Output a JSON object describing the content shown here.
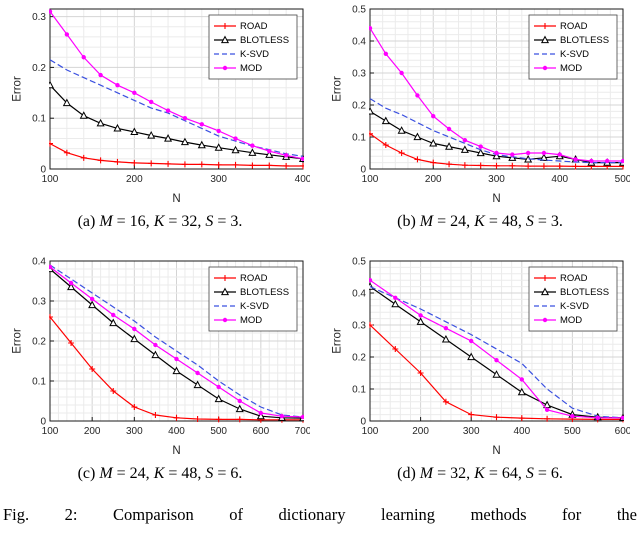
{
  "figure": {
    "caption": "Fig. 2: Comparison of dictionary learning methods for the"
  },
  "chart_data": [
    {
      "id": "a",
      "type": "line",
      "title": "",
      "caption": "(a) M = 16, K = 32, S = 3.",
      "xlabel": "N",
      "ylabel": "Error",
      "xlim": [
        100,
        400
      ],
      "ylim": [
        0,
        0.315
      ],
      "xticks": [
        100,
        200,
        300,
        400
      ],
      "yticks": [
        0,
        0.1,
        0.2,
        0.3
      ],
      "grid": true,
      "legend_position": "top-right",
      "x": [
        100,
        120,
        140,
        160,
        180,
        200,
        220,
        240,
        260,
        280,
        300,
        320,
        340,
        360,
        380,
        400
      ],
      "series": [
        {
          "name": "ROAD",
          "color": "#ff0000",
          "marker": "plus",
          "line": "solid",
          "y": [
            0.05,
            0.032,
            0.022,
            0.017,
            0.014,
            0.012,
            0.011,
            0.01,
            0.009,
            0.009,
            0.008,
            0.008,
            0.007,
            0.007,
            0.006,
            0.006
          ]
        },
        {
          "name": "BLOTLESS",
          "color": "#000000",
          "marker": "triangle-up",
          "line": "solid",
          "y": [
            0.165,
            0.13,
            0.105,
            0.09,
            0.08,
            0.073,
            0.066,
            0.06,
            0.053,
            0.047,
            0.042,
            0.037,
            0.032,
            0.028,
            0.024,
            0.02
          ]
        },
        {
          "name": "K-SVD",
          "color": "#3a50e0",
          "marker": "none",
          "line": "dashed",
          "y": [
            0.215,
            0.195,
            0.18,
            0.165,
            0.15,
            0.135,
            0.12,
            0.11,
            0.095,
            0.08,
            0.065,
            0.055,
            0.045,
            0.038,
            0.03,
            0.025
          ]
        },
        {
          "name": "MOD",
          "color": "#ff00ff",
          "marker": "dot",
          "line": "solid",
          "y": [
            0.31,
            0.265,
            0.22,
            0.185,
            0.165,
            0.15,
            0.132,
            0.115,
            0.1,
            0.088,
            0.075,
            0.06,
            0.046,
            0.035,
            0.027,
            0.02
          ]
        }
      ]
    },
    {
      "id": "b",
      "type": "line",
      "title": "",
      "caption": "(b) M = 24, K = 48, S = 3.",
      "xlabel": "N",
      "ylabel": "Error",
      "xlim": [
        100,
        500
      ],
      "ylim": [
        0,
        0.5
      ],
      "xticks": [
        100,
        200,
        300,
        400,
        500
      ],
      "yticks": [
        0,
        0.1,
        0.2,
        0.3,
        0.4,
        0.5
      ],
      "grid": true,
      "legend_position": "top-right",
      "x": [
        100,
        125,
        150,
        175,
        200,
        225,
        250,
        275,
        300,
        325,
        350,
        375,
        400,
        425,
        450,
        475,
        500
      ],
      "series": [
        {
          "name": "ROAD",
          "color": "#ff0000",
          "marker": "plus",
          "line": "solid",
          "y": [
            0.11,
            0.075,
            0.05,
            0.03,
            0.02,
            0.015,
            0.012,
            0.011,
            0.01,
            0.01,
            0.009,
            0.009,
            0.009,
            0.008,
            0.008,
            0.008,
            0.008
          ]
        },
        {
          "name": "BLOTLESS",
          "color": "#000000",
          "marker": "triangle-up",
          "line": "solid",
          "y": [
            0.18,
            0.15,
            0.12,
            0.1,
            0.08,
            0.07,
            0.06,
            0.05,
            0.04,
            0.035,
            0.03,
            0.035,
            0.04,
            0.03,
            0.02,
            0.02,
            0.02
          ]
        },
        {
          "name": "K-SVD",
          "color": "#3a50e0",
          "marker": "none",
          "line": "dashed",
          "y": [
            0.22,
            0.19,
            0.17,
            0.145,
            0.12,
            0.1,
            0.08,
            0.06,
            0.045,
            0.038,
            0.032,
            0.028,
            0.025,
            0.022,
            0.02,
            0.02,
            0.02
          ]
        },
        {
          "name": "MOD",
          "color": "#ff00ff",
          "marker": "dot",
          "line": "solid",
          "y": [
            0.44,
            0.36,
            0.3,
            0.23,
            0.165,
            0.125,
            0.09,
            0.07,
            0.05,
            0.045,
            0.05,
            0.05,
            0.045,
            0.03,
            0.025,
            0.025,
            0.025
          ]
        }
      ]
    },
    {
      "id": "c",
      "type": "line",
      "title": "",
      "caption": "(c) M = 24, K = 48, S = 6.",
      "xlabel": "N",
      "ylabel": "Error",
      "xlim": [
        100,
        700
      ],
      "ylim": [
        0,
        0.4
      ],
      "xticks": [
        100,
        200,
        300,
        400,
        500,
        600,
        700
      ],
      "yticks": [
        0,
        0.1,
        0.2,
        0.3,
        0.4
      ],
      "grid": true,
      "legend_position": "top-right",
      "x": [
        100,
        150,
        200,
        250,
        300,
        350,
        400,
        450,
        500,
        550,
        600,
        650,
        700
      ],
      "series": [
        {
          "name": "ROAD",
          "color": "#ff0000",
          "marker": "plus",
          "line": "solid",
          "y": [
            0.26,
            0.195,
            0.13,
            0.075,
            0.035,
            0.015,
            0.008,
            0.005,
            0.004,
            0.004,
            0.003,
            0.003,
            0.003
          ]
        },
        {
          "name": "BLOTLESS",
          "color": "#000000",
          "marker": "triangle-up",
          "line": "solid",
          "y": [
            0.38,
            0.335,
            0.29,
            0.245,
            0.205,
            0.165,
            0.125,
            0.09,
            0.055,
            0.03,
            0.012,
            0.008,
            0.007
          ]
        },
        {
          "name": "K-SVD",
          "color": "#3a50e0",
          "marker": "none",
          "line": "dashed",
          "y": [
            0.39,
            0.355,
            0.32,
            0.285,
            0.25,
            0.21,
            0.175,
            0.14,
            0.1,
            0.065,
            0.035,
            0.015,
            0.01
          ]
        },
        {
          "name": "MOD",
          "color": "#ff00ff",
          "marker": "dot",
          "line": "solid",
          "y": [
            0.385,
            0.345,
            0.305,
            0.265,
            0.23,
            0.19,
            0.155,
            0.12,
            0.085,
            0.05,
            0.02,
            0.012,
            0.01
          ]
        }
      ]
    },
    {
      "id": "d",
      "type": "line",
      "title": "",
      "caption": "(d) M = 32, K = 64, S = 6.",
      "xlabel": "N",
      "ylabel": "Error",
      "xlim": [
        100,
        600
      ],
      "ylim": [
        0,
        0.5
      ],
      "xticks": [
        100,
        200,
        300,
        400,
        500,
        600
      ],
      "yticks": [
        0,
        0.1,
        0.2,
        0.3,
        0.4,
        0.5
      ],
      "grid": true,
      "legend_position": "top-right",
      "x": [
        100,
        150,
        200,
        250,
        300,
        350,
        400,
        450,
        500,
        550,
        600
      ],
      "series": [
        {
          "name": "ROAD",
          "color": "#ff0000",
          "marker": "plus",
          "line": "solid",
          "y": [
            0.3,
            0.225,
            0.15,
            0.06,
            0.02,
            0.012,
            0.009,
            0.007,
            0.006,
            0.005,
            0.005
          ]
        },
        {
          "name": "BLOTLESS",
          "color": "#000000",
          "marker": "triangle-up",
          "line": "solid",
          "y": [
            0.42,
            0.365,
            0.31,
            0.255,
            0.2,
            0.145,
            0.09,
            0.05,
            0.02,
            0.012,
            0.01
          ]
        },
        {
          "name": "K-SVD",
          "color": "#3a50e0",
          "marker": "none",
          "line": "dashed",
          "y": [
            0.42,
            0.385,
            0.35,
            0.31,
            0.27,
            0.225,
            0.18,
            0.1,
            0.04,
            0.015,
            0.01
          ]
        },
        {
          "name": "MOD",
          "color": "#ff00ff",
          "marker": "dot",
          "line": "solid",
          "y": [
            0.44,
            0.385,
            0.33,
            0.29,
            0.25,
            0.19,
            0.13,
            0.035,
            0.015,
            0.01,
            0.01
          ]
        }
      ]
    }
  ]
}
